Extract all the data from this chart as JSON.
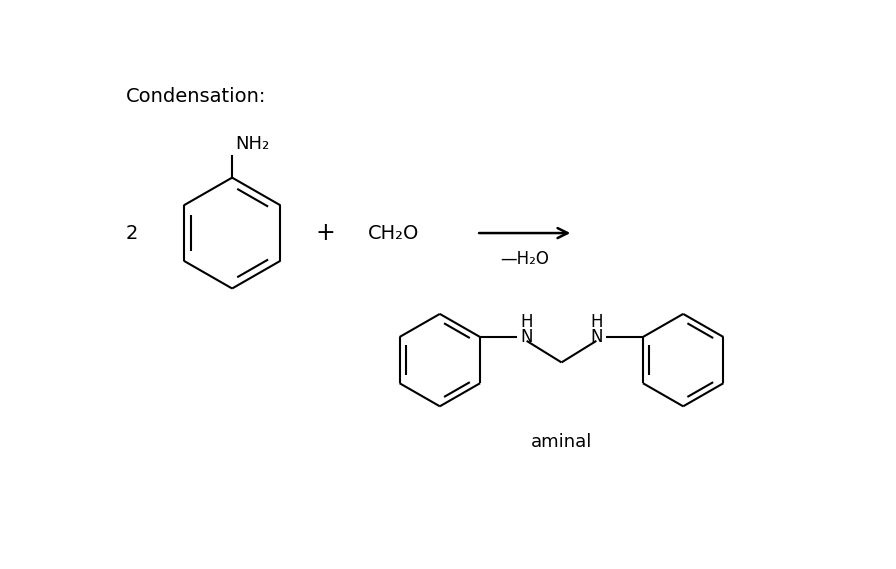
{
  "title": "Condensation:",
  "background_color": "#ffffff",
  "line_color": "#000000",
  "text_color": "#000000",
  "font_family": "DejaVu Sans",
  "fig_width": 8.96,
  "fig_height": 5.69,
  "dpi": 100,
  "aminal_label": "aminal",
  "reactant_label": "2",
  "nh2_label": "NH₂",
  "ch2o_label": "CH₂O",
  "h2o_label": "—H₂O",
  "plus_label": "+",
  "H_label": "H",
  "N_label": "N"
}
